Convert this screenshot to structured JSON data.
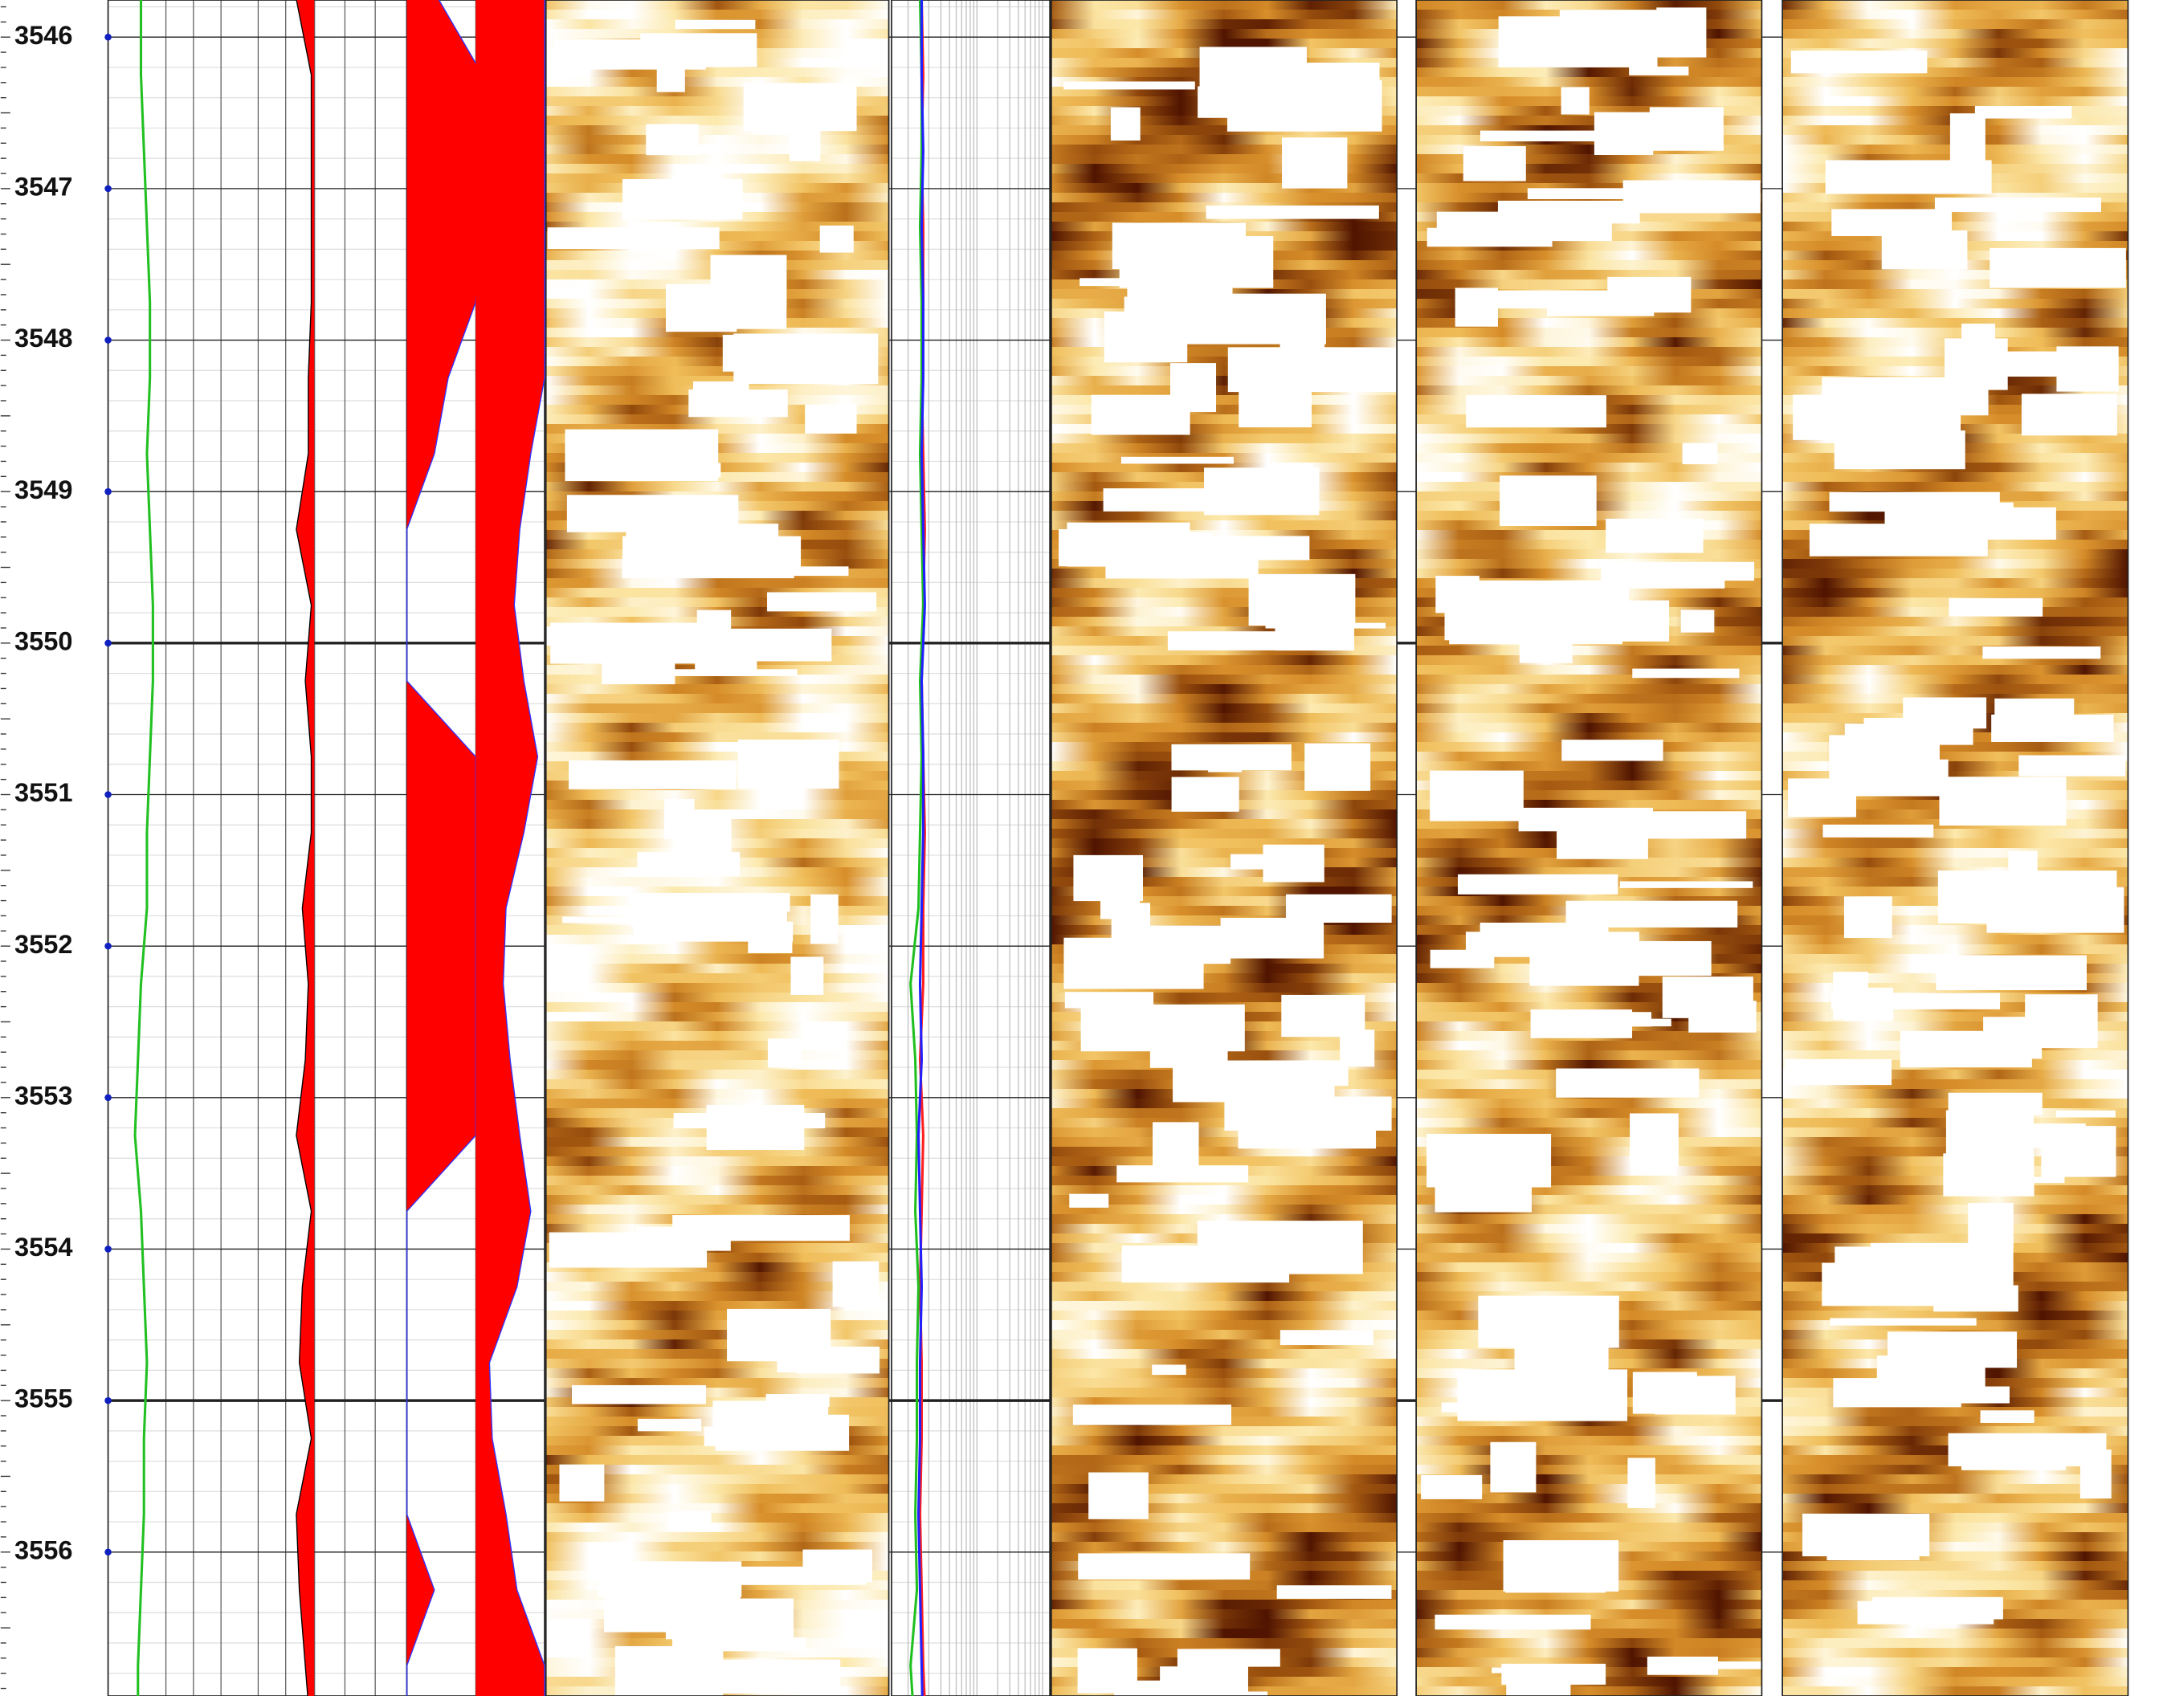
{
  "chart_data": {
    "type": "well_log",
    "ylim": [
      3545.755,
      3556.95
    ],
    "yticks": [
      3546,
      3547,
      3548,
      3549,
      3550,
      3551,
      3552,
      3553,
      3554,
      3555,
      3556
    ],
    "depth": [
      3545.75,
      3546.25,
      3546.75,
      3547.25,
      3547.75,
      3548.25,
      3548.75,
      3549.25,
      3549.75,
      3550.25,
      3550.75,
      3551.25,
      3551.75,
      3552.25,
      3552.75,
      3553.25,
      3553.75,
      3554.25,
      3554.75,
      3555.25,
      3555.75,
      3556.25,
      3556.75,
      3557.25
    ],
    "tracks": [
      {
        "xlim": [
          0,
          100
        ],
        "series": [
          {
            "color": "#22c022",
            "values": [
              11,
              11,
              12,
              13,
              14,
              14,
              13,
              14,
              15,
              15,
              14,
              13,
              13,
              11,
              10,
              9,
              11,
              12,
              13,
              12,
              12,
              11,
              10,
              10
            ]
          },
          {
            "color": "#000000",
            "fill": "#ff0000",
            "fill_base": 69,
            "values": [
              63,
              68,
              68,
              68,
              68,
              67,
              67,
              63,
              68,
              66,
              68,
              68,
              65,
              67,
              66,
              63,
              68,
              65,
              64,
              68,
              63,
              64,
              66,
              68
            ]
          }
        ]
      },
      {
        "xlim": [
          0,
          100
        ],
        "series": [
          {
            "color": "#3333ff",
            "fill": "#ff0000",
            "fill_base": 0,
            "values": [
              23,
              55,
              55,
              55,
              50,
              30,
              20,
              0,
              0,
              0,
              50,
              50,
              50,
              50,
              50,
              50,
              0,
              0,
              0,
              0,
              0,
              20,
              0,
              0
            ]
          },
          {
            "color": "#3333ff",
            "fill": "#ff0000",
            "fill_base": 50,
            "values": [
              100,
              100,
              100,
              100,
              100,
              100,
              90,
              82,
              78,
              85,
              95,
              85,
              72,
              70,
              75,
              82,
              90,
              80,
              60,
              62,
              72,
              80,
              100,
              100
            ]
          }
        ]
      },
      {
        "xlim": [
          0,
          100
        ],
        "series": [
          {
            "color": "#ff2020",
            "values": [
              19,
              20,
              19,
              20,
              20,
              19,
              20,
              21,
              20,
              19,
              20,
              21,
              20,
              20,
              18,
              20,
              19,
              18,
              19,
              19,
              18,
              19,
              20,
              22
            ]
          },
          {
            "color": "#20c020",
            "values": [
              18,
              19,
              19,
              18,
              19,
              19,
              18,
              19,
              20,
              18,
              19,
              18,
              17,
              12,
              15,
              16,
              15,
              17,
              16,
              16,
              15,
              16,
              12,
              15
            ]
          },
          {
            "color": "#2020ff",
            "values": [
              19,
              19,
              20,
              19,
              20,
              20,
              19,
              20,
              21,
              19,
              20,
              20,
              19,
              18,
              19,
              17,
              18,
              19,
              18,
              18,
              17,
              18,
              19,
              20
            ]
          }
        ]
      }
    ]
  }
}
